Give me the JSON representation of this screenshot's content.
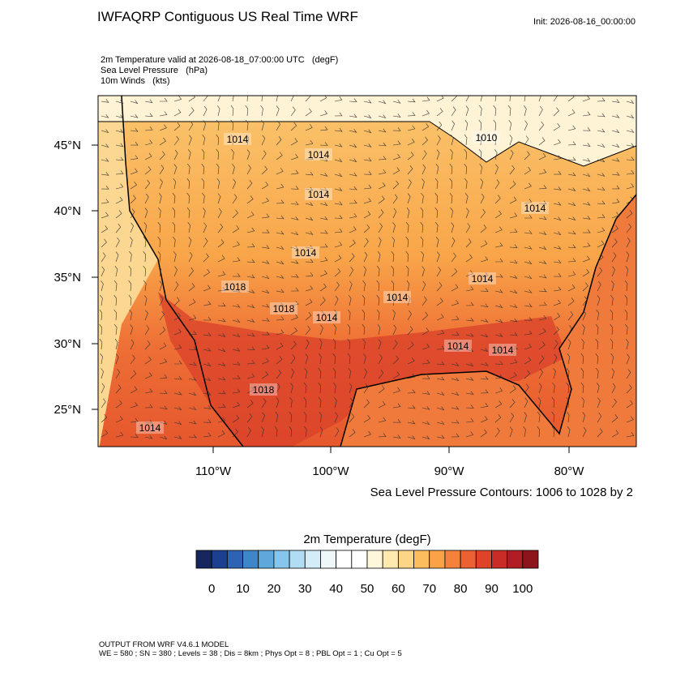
{
  "header": {
    "title": "IWFAQRP Contiguous US Real Time WRF",
    "init": "Init: 2026-08-16_00:00:00",
    "fields": [
      "2m Temperature valid at 2026-08-18_07:00:00 UTC   (degF)",
      "Sea Level Pressure   (hPa)",
      "10m Winds   (kts)"
    ]
  },
  "map": {
    "lat_labels": [
      "45°N",
      "40°N",
      "35°N",
      "30°N",
      "25°N"
    ],
    "lon_labels": [
      "110°W",
      "100°W",
      "90°W",
      "80°W"
    ],
    "contour_labels": [
      "1010",
      "1014",
      "1014",
      "1014",
      "1014",
      "1014",
      "1018",
      "1018",
      "1014",
      "1014",
      "1014",
      "1014",
      "1018",
      "1014",
      "1014"
    ],
    "contour_note": "Sea Level Pressure Contours: 1006 to 1028 by 2"
  },
  "colorbar": {
    "title": "2m Temperature  (degF)",
    "labels": [
      "0",
      "10",
      "20",
      "30",
      "40",
      "50",
      "60",
      "70",
      "80",
      "90",
      "100"
    ],
    "colors": [
      "#15275e",
      "#1c3f8f",
      "#2c63b3",
      "#3f86c8",
      "#5ea8db",
      "#87c6ec",
      "#b0dcf4",
      "#d3ecf8",
      "#eef8fb",
      "#ffffff",
      "#ffffff",
      "#fff7dc",
      "#fee9ae",
      "#fdd586",
      "#fcbd5e",
      "#f9a246",
      "#f4823a",
      "#ec6131",
      "#df442b",
      "#c92c26",
      "#b01d22",
      "#8e141c"
    ]
  },
  "footer": {
    "lines": [
      "OUTPUT FROM WRF V4.6.1 MODEL",
      "WE = 580 ; SN = 380 ; Levels = 38 ; Dis = 8km ; Phys Opt = 8 ; PBL Opt = 1 ; Cu Opt = 5"
    ]
  }
}
